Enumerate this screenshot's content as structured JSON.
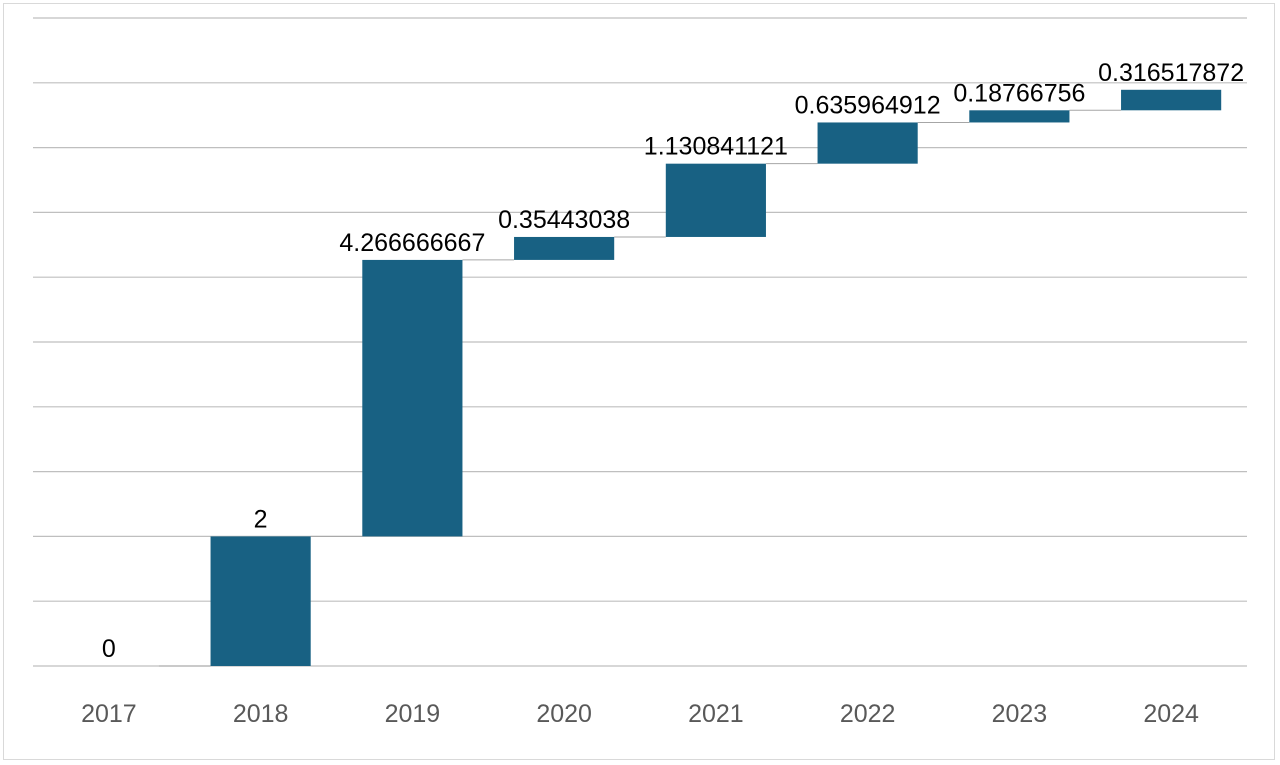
{
  "chart_data": {
    "type": "bar",
    "subtype": "waterfall",
    "title": "",
    "xlabel": "",
    "ylabel": "",
    "categories": [
      "2017",
      "2018",
      "2019",
      "2020",
      "2021",
      "2022",
      "2023",
      "2024"
    ],
    "values": [
      0,
      2,
      4.266666667,
      0.35443038,
      1.130841121,
      0.635964912,
      0.18766756,
      0.316517872
    ],
    "data_labels": [
      "0",
      "2",
      "4.266666667",
      "0.35443038",
      "1.130841121",
      "0.635964912",
      "0.18766756",
      "0.316517872"
    ],
    "ylim": [
      0,
      10
    ],
    "y_gridline_step": 1,
    "y_tick_labels_shown": false,
    "grid": true,
    "legend": "none",
    "colors": {
      "bar": "#186183",
      "grid": "#bfbfbf",
      "connector": "#a6a6a6",
      "tick_text": "#595959",
      "label_text": "#000000"
    }
  }
}
